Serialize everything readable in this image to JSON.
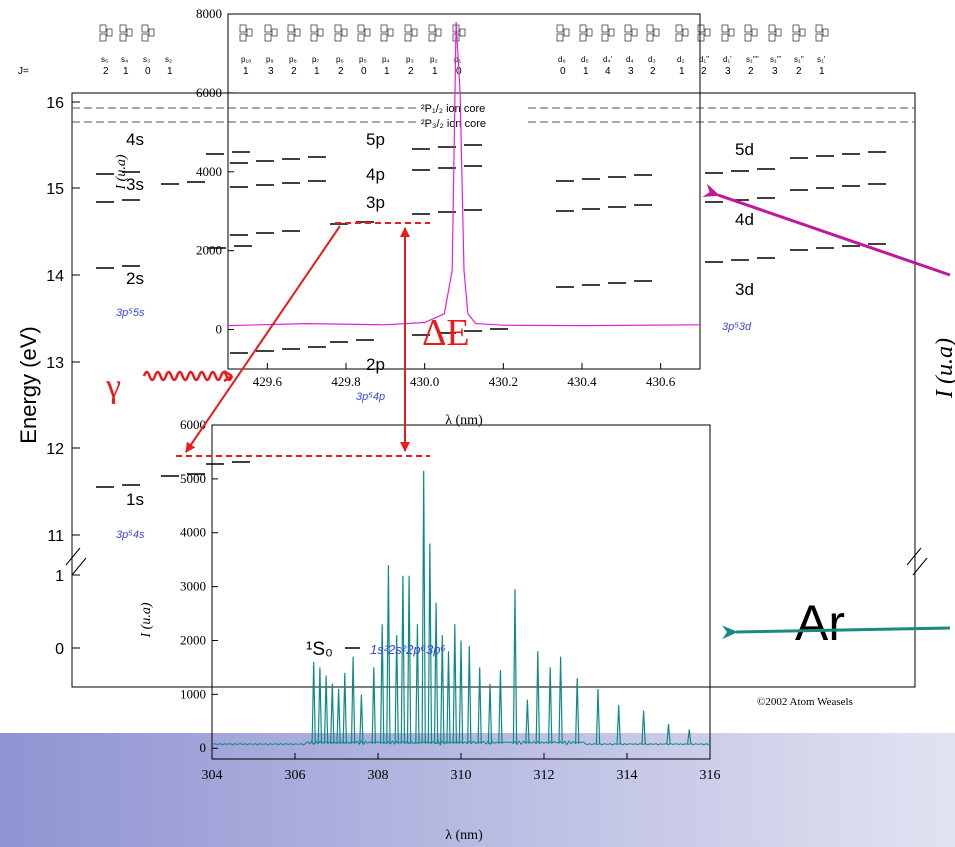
{
  "energy_diagram": {
    "ylabel": "Energy (eV)",
    "right_ylabel": "I (u.a)",
    "j_label": "J=",
    "y_ticks_upper": [
      "16",
      "15",
      "14",
      "13",
      "12",
      "11"
    ],
    "y_ticks_lower": [
      "1",
      "0"
    ],
    "ion_core_upper": "²P₁/₂ ion core",
    "ion_core_lower": "²P₃/₂ ion core",
    "level_labels": {
      "s4": "4s",
      "s3": "3s",
      "s2": "2s",
      "s1": "1s",
      "p5": "5p",
      "p4": "4p",
      "p3": "3p",
      "p2": "2p",
      "d5": "5d",
      "d4": "4d",
      "d3": "3d"
    },
    "configs": {
      "c5s": "3p⁵5s",
      "c4s": "3p⁵4s",
      "c4p": "3p⁵4p",
      "c3d": "3p⁵3d",
      "ground": "1s²2s²2p⁶3p⁶"
    },
    "ground_term": "¹S₀",
    "columns": [
      {
        "sub": "s₅",
        "j": "2"
      },
      {
        "sub": "s₄",
        "j": "1"
      },
      {
        "sub": "s₃",
        "j": "0"
      },
      {
        "sub": "s₂",
        "j": "1"
      },
      {
        "sub": "p₁₀",
        "j": "1"
      },
      {
        "sub": "p₉",
        "j": "3"
      },
      {
        "sub": "p₈",
        "j": "2"
      },
      {
        "sub": "p₇",
        "j": "1"
      },
      {
        "sub": "p₆",
        "j": "2"
      },
      {
        "sub": "p₅",
        "j": "0"
      },
      {
        "sub": "p₄",
        "j": "1"
      },
      {
        "sub": "p₃",
        "j": "2"
      },
      {
        "sub": "p₂",
        "j": "1"
      },
      {
        "sub": "p₁",
        "j": "0"
      },
      {
        "sub": "d₆",
        "j": "0"
      },
      {
        "sub": "d₅",
        "j": "1"
      },
      {
        "sub": "d₄'",
        "j": "4"
      },
      {
        "sub": "d₄",
        "j": "3"
      },
      {
        "sub": "d₃",
        "j": "2"
      },
      {
        "sub": "d₂",
        "j": "1"
      },
      {
        "sub": "d₁''",
        "j": "2"
      },
      {
        "sub": "d₁'",
        "j": "3"
      },
      {
        "sub": "s₁''''",
        "j": "2"
      },
      {
        "sub": "s₁'''",
        "j": "3"
      },
      {
        "sub": "s₁''",
        "j": "2"
      },
      {
        "sub": "s₁'",
        "j": "1"
      }
    ],
    "copyright": "©2002 Atom Weasels",
    "element": "Ar",
    "gamma": "γ",
    "delta_e": "ΔE"
  },
  "chart_data": [
    {
      "type": "line",
      "xlabel": "λ (nm)",
      "ylabel": "I (u.a)",
      "xlim": [
        429.5,
        430.7
      ],
      "ylim": [
        -1000,
        8000
      ],
      "x_ticks": [
        "429.6",
        "429.8",
        "430.0",
        "430.2",
        "430.4",
        "430.6"
      ],
      "y_ticks": [
        "0",
        "2000",
        "4000",
        "6000",
        "8000"
      ],
      "series": [
        {
          "color": "#e020e0",
          "x": [
            429.5,
            429.7,
            429.9,
            430.0,
            430.05,
            430.07,
            430.08,
            430.09,
            430.1,
            430.11,
            430.13,
            430.2,
            430.4,
            430.7
          ],
          "y": [
            100,
            150,
            120,
            180,
            400,
            1500,
            7800,
            6000,
            1500,
            400,
            150,
            110,
            100,
            120
          ]
        }
      ]
    },
    {
      "type": "line",
      "xlabel": "λ (nm)",
      "ylabel": "I (u.a)",
      "xlim": [
        304,
        316
      ],
      "ylim": [
        -200,
        6000
      ],
      "x_ticks": [
        "304",
        "306",
        "308",
        "310",
        "312",
        "314",
        "316"
      ],
      "y_ticks": [
        "0",
        "1000",
        "2000",
        "3000",
        "4000",
        "5000",
        "6000"
      ],
      "series": [
        {
          "color": "#0e8a86",
          "peaks": [
            [
              306.45,
              1600
            ],
            [
              306.6,
              1500
            ],
            [
              306.75,
              1350
            ],
            [
              306.9,
              1200
            ],
            [
              307.05,
              1100
            ],
            [
              307.2,
              1400
            ],
            [
              307.4,
              1700
            ],
            [
              307.6,
              1000
            ],
            [
              307.9,
              1500
            ],
            [
              308.1,
              2300
            ],
            [
              308.25,
              3400
            ],
            [
              308.45,
              2100
            ],
            [
              308.6,
              3200
            ],
            [
              308.75,
              3200
            ],
            [
              308.95,
              2300
            ],
            [
              309.1,
              5150
            ],
            [
              309.25,
              3800
            ],
            [
              309.4,
              2700
            ],
            [
              309.55,
              2100
            ],
            [
              309.7,
              1800
            ],
            [
              309.85,
              2300
            ],
            [
              310.0,
              2000
            ],
            [
              310.2,
              1900
            ],
            [
              310.45,
              1500
            ],
            [
              310.7,
              1200
            ],
            [
              310.95,
              1450
            ],
            [
              311.3,
              2950
            ],
            [
              311.6,
              900
            ],
            [
              311.85,
              1800
            ],
            [
              312.15,
              1500
            ],
            [
              312.4,
              1700
            ],
            [
              312.8,
              1300
            ],
            [
              313.3,
              1100
            ],
            [
              313.8,
              800
            ],
            [
              314.4,
              700
            ],
            [
              315.0,
              450
            ],
            [
              315.5,
              350
            ]
          ]
        }
      ]
    }
  ]
}
